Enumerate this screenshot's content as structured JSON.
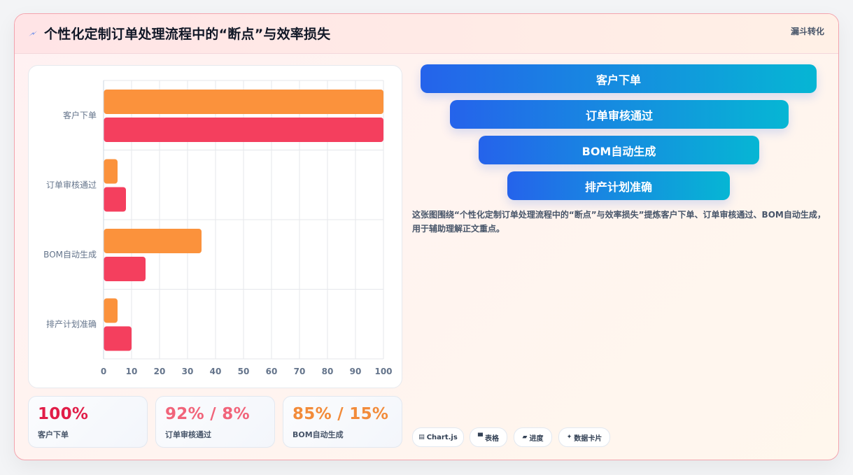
{
  "header": {
    "icon": "lightning-icon",
    "title": "个性化定制订单处理流程中的“断点”与效率损失",
    "tag": "漏斗转化"
  },
  "chart_data": {
    "type": "bar",
    "orientation": "horizontal",
    "categories": [
      "客户下单",
      "订单审核通过",
      "BOM自动生成",
      "排产计划准确"
    ],
    "series": [
      {
        "color": "#fb923c",
        "values": [
          100,
          5,
          35,
          5
        ]
      },
      {
        "color": "#f43f5e",
        "values": [
          100,
          8,
          15,
          10
        ]
      }
    ],
    "xlim": [
      0,
      100
    ],
    "xticks": [
      0,
      10,
      20,
      30,
      40,
      50,
      60,
      70,
      80,
      90,
      100
    ],
    "grid": true
  },
  "stats": [
    {
      "value": "100%",
      "label": "客户下单",
      "color": "#e11d48"
    },
    {
      "value": "92% / 8%",
      "label": "订单审核通过",
      "color": "#f1647a"
    },
    {
      "value": "85% / 15%",
      "label": "BOM自动生成",
      "color": "#f28b3a"
    }
  ],
  "funnel": {
    "stages": [
      "客户下单",
      "订单审核通过",
      "BOM自动生成",
      "排产计划准确"
    ]
  },
  "description": "这张图围绕“个性化定制订单处理流程中的“断点”与效率损失”提炼客户下单、订单审核通过、BOM自动生成，用于辅助理解正文重点。",
  "chips": [
    {
      "icon": "calendar-icon",
      "glyph": "▤",
      "label": "Chart.js"
    },
    {
      "icon": "table-icon",
      "glyph": "▀",
      "label": "表格"
    },
    {
      "icon": "progress-icon",
      "glyph": "▰",
      "label": "进度"
    },
    {
      "icon": "sparkle-icon",
      "glyph": "✦",
      "label": "数据卡片"
    }
  ]
}
